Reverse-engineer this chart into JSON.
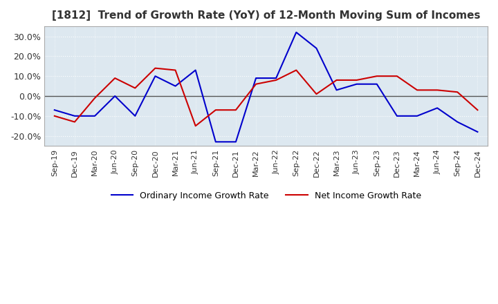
{
  "title": "[1812]  Trend of Growth Rate (YoY) of 12-Month Moving Sum of Incomes",
  "title_fontsize": 11,
  "ylim": [
    -0.25,
    0.35
  ],
  "yticks": [
    -0.2,
    -0.1,
    0.0,
    0.1,
    0.2,
    0.3
  ],
  "background_color": "#ffffff",
  "plot_bg_color": "#dde8f0",
  "grid_color": "#ffffff",
  "ordinary_color": "#0000cc",
  "net_color": "#cc0000",
  "legend_labels": [
    "Ordinary Income Growth Rate",
    "Net Income Growth Rate"
  ],
  "x_labels": [
    "Sep-19",
    "Dec-19",
    "Mar-20",
    "Jun-20",
    "Sep-20",
    "Dec-20",
    "Mar-21",
    "Jun-21",
    "Sep-21",
    "Dec-21",
    "Mar-22",
    "Jun-22",
    "Sep-22",
    "Dec-22",
    "Mar-23",
    "Jun-23",
    "Sep-23",
    "Dec-23",
    "Mar-24",
    "Jun-24",
    "Sep-24",
    "Dec-24"
  ],
  "ordinary": [
    -0.07,
    -0.1,
    -0.1,
    0.0,
    -0.1,
    0.1,
    0.05,
    0.13,
    -0.23,
    -0.23,
    0.09,
    0.09,
    0.32,
    0.24,
    0.03,
    0.06,
    0.06,
    -0.1,
    -0.1,
    -0.06,
    -0.13,
    -0.18
  ],
  "net": [
    -0.1,
    -0.13,
    -0.01,
    0.09,
    0.04,
    0.14,
    0.13,
    -0.15,
    -0.07,
    -0.07,
    0.06,
    0.08,
    0.13,
    0.01,
    0.08,
    0.08,
    0.1,
    0.1,
    0.03,
    0.03,
    0.02,
    -0.07
  ]
}
